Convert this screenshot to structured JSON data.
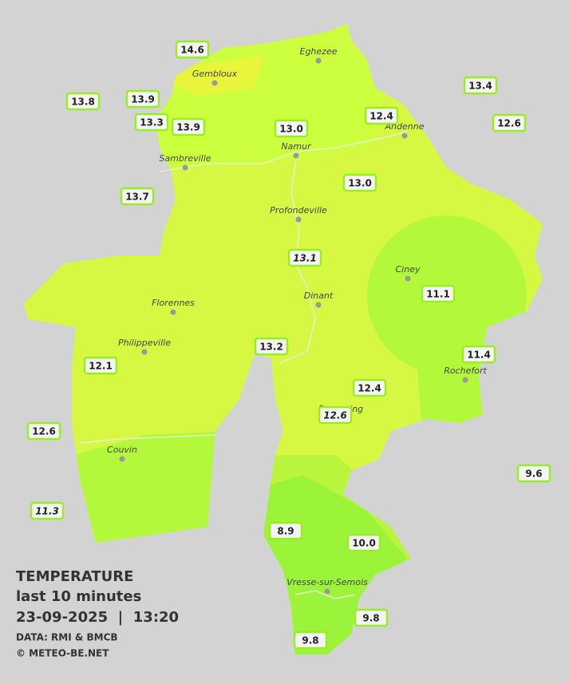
{
  "legend": {
    "title": "TEMPERATURE",
    "subtitle": "last 10 minutes",
    "datetime": "23-09-2025  |  13:20",
    "source": "DATA: RMI & BMCB",
    "copyright": "© METEO-BE.NET"
  },
  "cities": [
    "Eghezee",
    "Gembloux",
    "Andenne",
    "Namur",
    "Sambreville",
    "Profondeville",
    "Ciney",
    "Dinant",
    "Florennes",
    "Philippeville",
    "Rochefort",
    "Beauraing",
    "Couvin",
    "Vresse-sur-Semois"
  ],
  "stations": [
    {
      "label": "14.6"
    },
    {
      "label": "13.8"
    },
    {
      "label": "13.9"
    },
    {
      "label": "13.3"
    },
    {
      "label": "13.9"
    },
    {
      "label": "13.0"
    },
    {
      "label": "12.4"
    },
    {
      "label": "13.4"
    },
    {
      "label": "12.6"
    },
    {
      "label": "13.7"
    },
    {
      "label": "13.0"
    },
    {
      "label": "13.1",
      "italic": true
    },
    {
      "label": "11.1"
    },
    {
      "label": "13.2"
    },
    {
      "label": "11.4"
    },
    {
      "label": "12.1"
    },
    {
      "label": "12.4"
    },
    {
      "label": "12.6",
      "italic": true
    },
    {
      "label": "12.6"
    },
    {
      "label": "9.6"
    },
    {
      "label": "11.3",
      "italic": true
    },
    {
      "label": "8.9"
    },
    {
      "label": "10.0"
    },
    {
      "label": "9.8"
    },
    {
      "label": "9.8"
    }
  ]
}
